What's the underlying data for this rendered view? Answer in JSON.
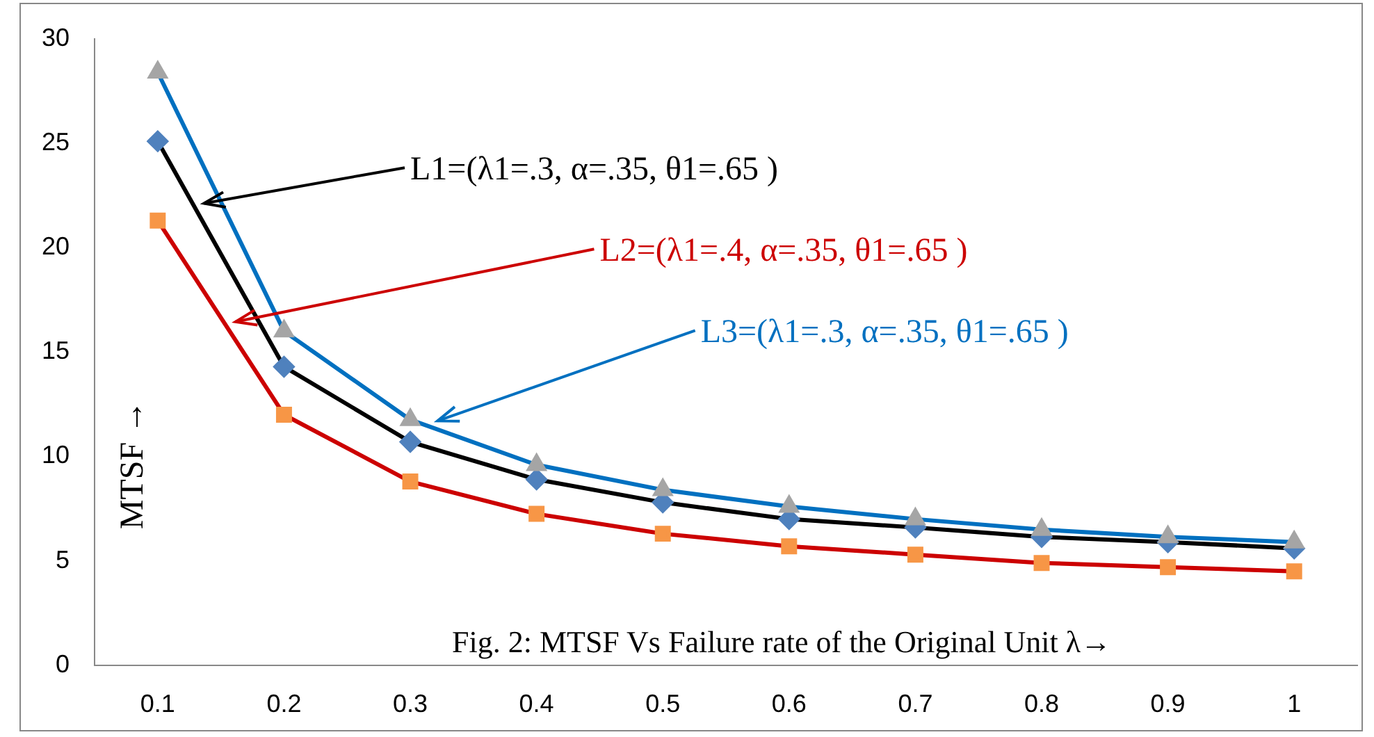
{
  "chart_data": {
    "type": "line",
    "ylabel": "MTSF →",
    "annotations": [
      "Fig. 2: MTSF Vs Failure rate of the Original Unit λ→"
    ],
    "categories": [
      "0.1",
      "0.2",
      "0.3",
      "0.4",
      "0.5",
      "0.6",
      "0.7",
      "0.8",
      "0.9",
      "1"
    ],
    "ylim": [
      0,
      30
    ],
    "yticks": [
      0,
      5,
      10,
      15,
      20,
      25,
      30
    ],
    "series": [
      {
        "name": "L1=(λ1=.3, α=.35, θ1=.65 )",
        "color": "#000000",
        "marker": "diamond",
        "colors": [
          "#4f81bd",
          "#4f81bd",
          "#4f81bd",
          "#4f81bd",
          "#4f81bd",
          "#4f81bd",
          "#4f81bd",
          "#4f81bd",
          "#4f81bd",
          "#4f81bd"
        ],
        "values": [
          25.1,
          14.3,
          10.7,
          8.9,
          7.8,
          7.0,
          6.6,
          6.15,
          5.9,
          5.6
        ]
      },
      {
        "name": "L2=(λ1=.4, α=.35, θ1=.65 )",
        "color": "#cc0000",
        "marker": "square",
        "colors": [
          "#f79646",
          "#f79646",
          "#f79646",
          "#f79646",
          "#f79646",
          "#f79646",
          "#f79646",
          "#f79646",
          "#f79646",
          "#f79646"
        ],
        "values": [
          21.3,
          12.0,
          8.8,
          7.25,
          6.3,
          5.7,
          5.3,
          4.9,
          4.7,
          4.5
        ]
      },
      {
        "name": "L3=(λ1=.3, α=.35, θ1=.65 )",
        "color": "#0070c0",
        "marker": "triangle",
        "colors": [
          "#a5a5a5",
          "#a5a5a5",
          "#a5a5a5",
          "#a5a5a5",
          "#a5a5a5",
          "#a5a5a5",
          "#a5a5a5",
          "#a5a5a5",
          "#a5a5a5",
          "#a5a5a5"
        ],
        "values": [
          28.4,
          16.0,
          11.76,
          9.6,
          8.4,
          7.6,
          7.0,
          6.5,
          6.15,
          5.9
        ]
      }
    ]
  }
}
